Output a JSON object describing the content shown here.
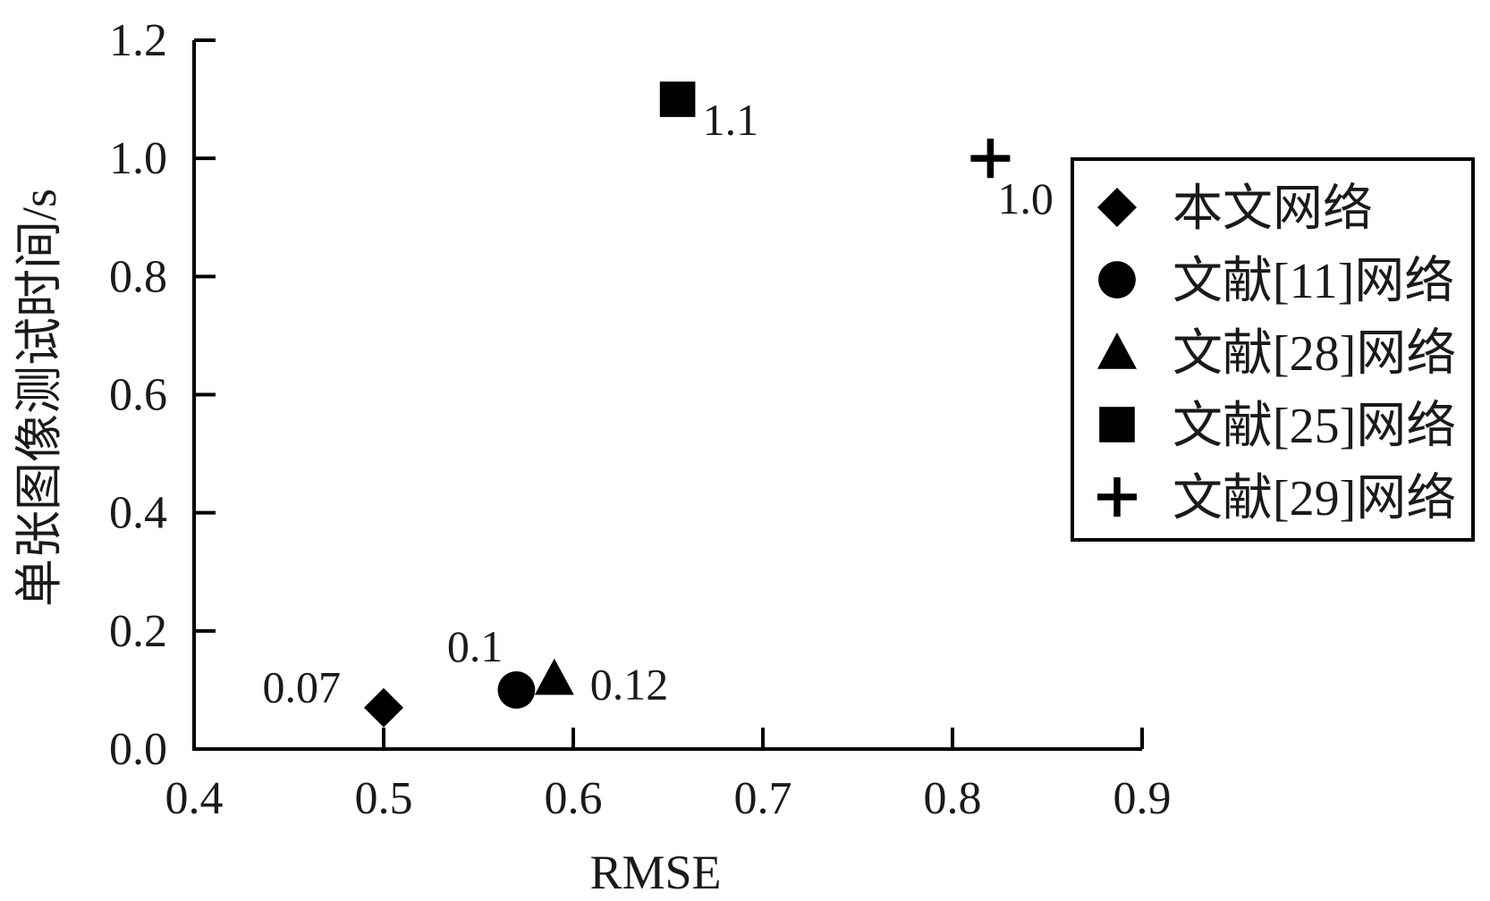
{
  "chart_data": {
    "type": "scatter",
    "xlabel": "RMSE",
    "ylabel": "单张图像测试时间/s",
    "xlim": [
      0.4,
      0.9
    ],
    "ylim": [
      0.0,
      1.2
    ],
    "x_ticks": [
      "0.4",
      "0.5",
      "0.6",
      "0.7",
      "0.8",
      "0.9"
    ],
    "y_ticks": [
      "0.0",
      "0.2",
      "0.4",
      "0.6",
      "0.8",
      "1.0",
      "1.2"
    ],
    "grid": false,
    "legend_position": "right",
    "series": [
      {
        "name": "本文网络",
        "marker": "diamond",
        "x": 0.5,
        "y": 0.07,
        "label": "0.07"
      },
      {
        "name": "文献[11]网络",
        "marker": "circle",
        "x": 0.57,
        "y": 0.1,
        "label": "0.1"
      },
      {
        "name": "文献[28]网络",
        "marker": "triangle",
        "x": 0.59,
        "y": 0.12,
        "label": "0.12"
      },
      {
        "name": "文献[25]网络",
        "marker": "square",
        "x": 0.655,
        "y": 1.1,
        "label": "1.1"
      },
      {
        "name": "文献[29]网络",
        "marker": "plus",
        "x": 0.82,
        "y": 1.0,
        "label": "1.0"
      }
    ],
    "colors": {
      "marker": "#000000",
      "axis": "#000000",
      "text": "#1a1a1a"
    }
  }
}
